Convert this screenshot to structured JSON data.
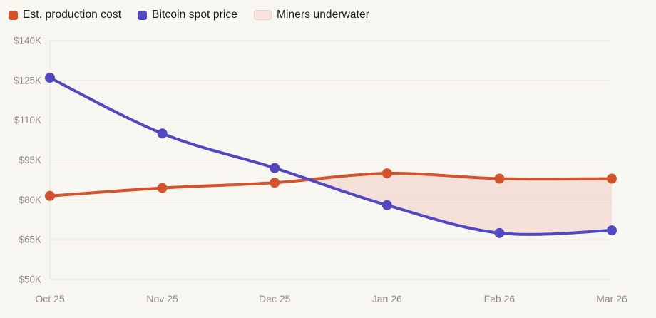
{
  "legend": [
    {
      "label": "Est. production cost",
      "swatch": "square",
      "color": "#d4532c"
    },
    {
      "label": "Bitcoin spot price",
      "swatch": "square",
      "color": "#5348c4"
    },
    {
      "label": "Miners underwater",
      "swatch": "area",
      "color": "#f8e2de",
      "border": "#eacfc9"
    }
  ],
  "chart_data": {
    "type": "line",
    "categories": [
      "Oct 25",
      "Nov 25",
      "Dec 25",
      "Jan 26",
      "Feb 26",
      "Mar 26"
    ],
    "series": [
      {
        "name": "Est. production cost",
        "color": "#d4532c",
        "values": [
          81.5,
          84.5,
          86.5,
          90,
          88,
          88
        ]
      },
      {
        "name": "Bitcoin spot price",
        "color": "#5348c4",
        "values": [
          126,
          105,
          92,
          78,
          67.5,
          68.5
        ]
      }
    ],
    "underwater_area": {
      "name": "Miners underwater",
      "between": [
        "Est. production cost",
        "Bitcoin spot price"
      ],
      "condition": "spot price below production cost",
      "fill": "rgba(214,80,60,0.13)"
    },
    "unit": "USD thousands",
    "y_ticks": [
      "$140K",
      "$125K",
      "$110K",
      "$95K",
      "$80K",
      "$65K",
      "$50K"
    ],
    "y_tick_values": [
      140,
      125,
      110,
      95,
      80,
      65,
      50
    ],
    "ylim": [
      50,
      140
    ],
    "grid": "horizontal",
    "legend_position": "top-left"
  },
  "colors": {
    "background": "#f8f6f1",
    "gridline": "#e9e6df",
    "tick_text": "#8f8c85"
  }
}
